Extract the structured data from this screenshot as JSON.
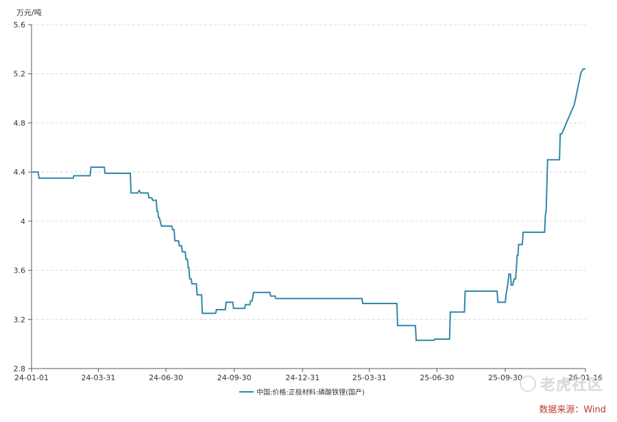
{
  "chart_data": {
    "type": "line",
    "unit_label": "万元/吨",
    "y_ticks": [
      2.8,
      3.2,
      3.6,
      4,
      4.4,
      4.8,
      5.2,
      5.6
    ],
    "y_tick_labels": [
      "2.8",
      "3.2",
      "3.6",
      "4",
      "4.4",
      "4.8",
      "5.2",
      "5.6"
    ],
    "ylim": [
      2.8,
      5.6
    ],
    "xlim": [
      "2024-01-01",
      "2026-01-16"
    ],
    "x_ticks": [
      "2024-01-01",
      "2024-03-31",
      "2024-06-30",
      "2024-09-30",
      "2024-12-31",
      "2025-03-31",
      "2025-06-30",
      "2025-09-30",
      "2026-01-16"
    ],
    "x_tick_labels": [
      "24-01-01",
      "24-03-31",
      "24-06-30",
      "24-09-30",
      "24-12-31",
      "25-03-31",
      "25-06-30",
      "25-09-30",
      "26-01-16"
    ],
    "grid": true,
    "legend_position": "bottom",
    "color": "#2e86ab",
    "series": [
      {
        "name": "中国:价格:正极材料:磷酸铁锂(国产)",
        "points": [
          [
            "2024-01-01",
            4.4
          ],
          [
            "2024-01-10",
            4.4
          ],
          [
            "2024-01-11",
            4.35
          ],
          [
            "2024-02-26",
            4.35
          ],
          [
            "2024-02-27",
            4.37
          ],
          [
            "2024-03-20",
            4.37
          ],
          [
            "2024-03-21",
            4.44
          ],
          [
            "2024-04-08",
            4.44
          ],
          [
            "2024-04-09",
            4.39
          ],
          [
            "2024-05-13",
            4.39
          ],
          [
            "2024-05-14",
            4.23
          ],
          [
            "2024-05-23",
            4.23
          ],
          [
            "2024-05-25",
            4.25
          ],
          [
            "2024-05-27",
            4.23
          ],
          [
            "2024-06-06",
            4.23
          ],
          [
            "2024-06-07",
            4.19
          ],
          [
            "2024-06-11",
            4.19
          ],
          [
            "2024-06-12",
            4.17
          ],
          [
            "2024-06-17",
            4.17
          ],
          [
            "2024-06-18",
            4.08
          ],
          [
            "2024-06-19",
            4.08
          ],
          [
            "2024-06-20",
            4.03
          ],
          [
            "2024-06-21",
            4.03
          ],
          [
            "2024-06-24",
            3.96
          ],
          [
            "2024-07-08",
            3.96
          ],
          [
            "2024-07-09",
            3.93
          ],
          [
            "2024-07-11",
            3.93
          ],
          [
            "2024-07-12",
            3.84
          ],
          [
            "2024-07-17",
            3.84
          ],
          [
            "2024-07-18",
            3.8
          ],
          [
            "2024-07-21",
            3.8
          ],
          [
            "2024-07-22",
            3.75
          ],
          [
            "2024-07-26",
            3.75
          ],
          [
            "2024-07-27",
            3.69
          ],
          [
            "2024-07-29",
            3.69
          ],
          [
            "2024-07-30",
            3.62
          ],
          [
            "2024-07-31",
            3.62
          ],
          [
            "2024-08-01",
            3.53
          ],
          [
            "2024-08-03",
            3.53
          ],
          [
            "2024-08-04",
            3.49
          ],
          [
            "2024-08-10",
            3.49
          ],
          [
            "2024-08-11",
            3.4
          ],
          [
            "2024-08-17",
            3.4
          ],
          [
            "2024-08-18",
            3.25
          ],
          [
            "2024-09-05",
            3.25
          ],
          [
            "2024-09-06",
            3.28
          ],
          [
            "2024-09-18",
            3.28
          ],
          [
            "2024-09-19",
            3.34
          ],
          [
            "2024-09-28",
            3.34
          ],
          [
            "2024-09-29",
            3.29
          ],
          [
            "2024-10-14",
            3.29
          ],
          [
            "2024-10-15",
            3.32
          ],
          [
            "2024-10-21",
            3.32
          ],
          [
            "2024-10-22",
            3.35
          ],
          [
            "2024-10-24",
            3.35
          ],
          [
            "2024-10-26",
            3.42
          ],
          [
            "2024-11-17",
            3.42
          ],
          [
            "2024-11-18",
            3.39
          ],
          [
            "2024-11-24",
            3.39
          ],
          [
            "2024-11-25",
            3.37
          ],
          [
            "2025-03-21",
            3.37
          ],
          [
            "2025-03-22",
            3.33
          ],
          [
            "2025-05-07",
            3.33
          ],
          [
            "2025-05-08",
            3.15
          ],
          [
            "2025-06-01",
            3.15
          ],
          [
            "2025-06-02",
            3.03
          ],
          [
            "2025-06-26",
            3.03
          ],
          [
            "2025-06-27",
            3.04
          ],
          [
            "2025-07-17",
            3.04
          ],
          [
            "2025-07-18",
            3.26
          ],
          [
            "2025-08-06",
            3.26
          ],
          [
            "2025-08-07",
            3.43
          ],
          [
            "2025-09-19",
            3.43
          ],
          [
            "2025-09-20",
            3.34
          ],
          [
            "2025-09-30",
            3.34
          ],
          [
            "2025-10-01",
            3.4
          ],
          [
            "2025-10-03",
            3.47
          ],
          [
            "2025-10-05",
            3.57
          ],
          [
            "2025-10-07",
            3.57
          ],
          [
            "2025-10-08",
            3.48
          ],
          [
            "2025-10-10",
            3.48
          ],
          [
            "2025-10-12",
            3.53
          ],
          [
            "2025-10-14",
            3.53
          ],
          [
            "2025-10-16",
            3.72
          ],
          [
            "2025-10-17",
            3.72
          ],
          [
            "2025-10-18",
            3.81
          ],
          [
            "2025-10-23",
            3.81
          ],
          [
            "2025-10-24",
            3.91
          ],
          [
            "2025-11-22",
            3.91
          ],
          [
            "2025-11-23",
            4.05
          ],
          [
            "2025-11-24",
            4.08
          ],
          [
            "2025-11-26",
            4.5
          ],
          [
            "2025-12-12",
            4.5
          ],
          [
            "2025-12-13",
            4.71
          ],
          [
            "2025-12-15",
            4.71
          ],
          [
            "2026-01-01",
            4.95
          ],
          [
            "2026-01-10",
            5.21
          ],
          [
            "2026-01-13",
            5.24
          ],
          [
            "2026-01-16",
            5.24
          ]
        ]
      }
    ]
  },
  "watermark": {
    "text": "老虎社区"
  },
  "source": {
    "text": "数据来源：Wind"
  }
}
